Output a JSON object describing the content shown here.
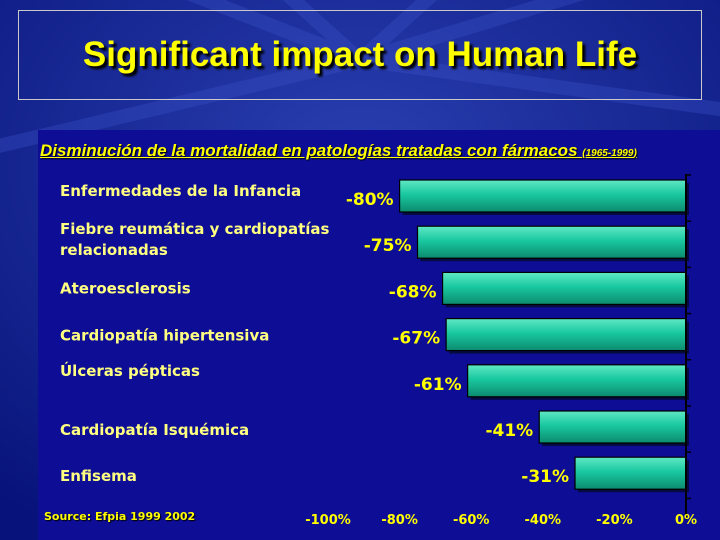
{
  "slide": {
    "title": "Significant impact on Human Life",
    "source": "Source: Efpia 1999 2002"
  },
  "colors": {
    "background": "#0b1a8c",
    "title": "#ffff00",
    "bar_fill": "#19c8a0",
    "text": "#ffff00"
  },
  "chart_data": {
    "type": "bar",
    "orientation": "horizontal",
    "title": "Disminución de la mortalidad en patologías tratadas con fármacos",
    "title_note": "1965-1999",
    "categories": [
      [
        "Enfermedades de la Infancia"
      ],
      [
        "Fiebre reumática y cardiopatías",
        "relacionadas"
      ],
      [
        "Ateroesclerosis"
      ],
      [
        "Cardiopatía hipertensiva"
      ],
      [
        "Úlceras pépticas"
      ],
      [
        "Cardiopatía Isquémica"
      ],
      [
        "Enfisema"
      ]
    ],
    "values": [
      -80,
      -75,
      -68,
      -67,
      -61,
      -41,
      -31
    ],
    "value_labels": [
      "-80%",
      "-75%",
      "-68%",
      "-67%",
      "-61%",
      "-41%",
      "-31%"
    ],
    "xlim": [
      -100,
      0
    ],
    "xticks": [
      -100,
      -80,
      -60,
      -40,
      -20,
      0
    ],
    "xtick_labels": [
      "-100%",
      "-80%",
      "-60%",
      "-40%",
      "-20%",
      "0%"
    ],
    "grid": false,
    "legend": "none"
  }
}
